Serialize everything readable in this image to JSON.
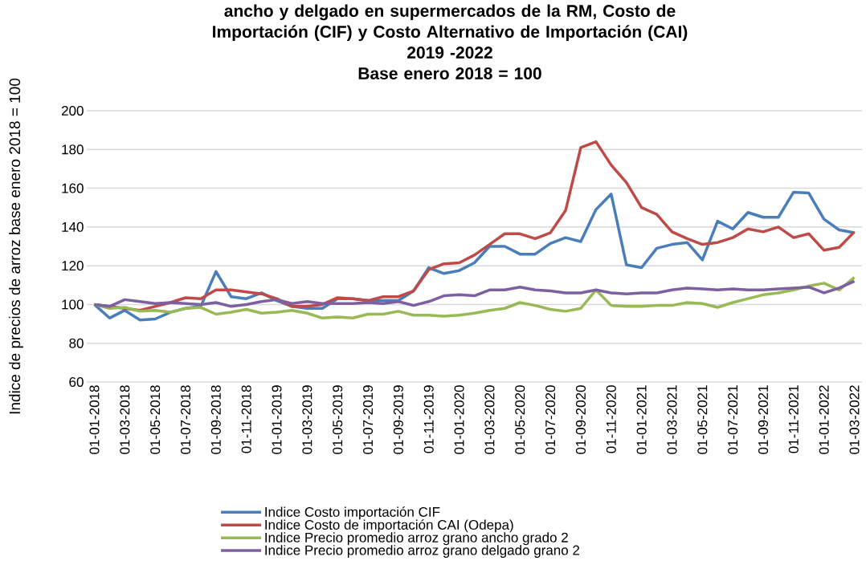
{
  "chart_data": {
    "type": "line",
    "title": "ancho y delgado en supermercados de la RM, Costo de Importación (CIF) y Costo Alternativo de Importación (CAI)",
    "subtitle": "2019 -2022",
    "annotations": [
      "Base enero 2018 = 100"
    ],
    "ylabel": "Indice de precios de arroz base enero 2018 = 100",
    "categories": [
      "01-01-2018",
      null,
      "01-03-2018",
      null,
      "01-05-2018",
      null,
      "01-07-2018",
      null,
      "01-09-2018",
      null,
      "01-11-2018",
      null,
      "01-01-2019",
      null,
      "01-03-2019",
      null,
      "01-05-2019",
      null,
      "01-07-2019",
      null,
      "01-09-2019",
      null,
      "01-11-2019",
      null,
      "01-01-2020",
      null,
      "01-03-2020",
      null,
      "01-05-2020",
      null,
      "01-07-2020",
      null,
      "01-09-2020",
      null,
      "01-11-2020",
      null,
      "01-01-2021",
      null,
      "01-03-2021",
      null,
      "01-05-2021",
      null,
      "01-07-2021",
      null,
      "01-09-2021",
      null,
      "01-11-2021",
      null,
      "01-01-2022",
      null,
      "01-03-2022"
    ],
    "ylim": [
      60,
      200
    ],
    "yticks": [
      60,
      80,
      100,
      120,
      140,
      160,
      180,
      200
    ],
    "grid": "y",
    "legend": "bottom",
    "marker": "none",
    "line_style": "solid",
    "series": [
      {
        "name": "Indice  Costo importación CIF",
        "color": "#4a7ebb",
        "values": [
          100,
          93,
          97,
          92,
          92.5,
          96,
          98,
          99,
          117,
          104,
          103,
          106,
          102,
          99,
          98,
          98,
          103,
          103,
          102,
          102,
          102,
          107,
          119,
          116,
          117.5,
          121.5,
          130,
          130,
          126,
          126,
          131.5,
          134.5,
          132.5,
          149,
          157,
          120.5,
          119,
          129,
          131,
          132,
          123,
          143,
          139,
          147.5,
          145,
          145,
          158,
          157.5,
          144,
          138.5,
          137
        ]
      },
      {
        "name": "Indice Costo de importación CAI (Odepa)",
        "color": "#be4b48",
        "values": [
          100,
          99,
          98,
          97,
          99,
          101,
          103.5,
          103,
          107.5,
          107.5,
          106.5,
          105.5,
          103,
          99,
          99,
          100,
          103.5,
          103,
          102,
          104,
          104,
          107,
          118,
          121,
          121.5,
          125.5,
          131,
          136.5,
          136.5,
          134,
          137,
          148.5,
          181,
          184,
          172,
          163,
          150,
          146.5,
          137.5,
          134,
          131,
          132,
          134.5,
          139,
          137.5,
          140,
          134.5,
          136.5,
          128,
          129.5,
          137.5
        ]
      },
      {
        "name": "Indice Precio promedio arroz grano ancho grado 2",
        "color": "#98b954",
        "values": [
          100,
          98,
          98.5,
          96.5,
          97,
          96,
          98,
          98.5,
          95,
          96,
          97.5,
          95.5,
          96,
          97,
          95.5,
          93,
          93.5,
          93,
          95,
          95,
          96.5,
          94.5,
          94.5,
          94,
          94.5,
          95.5,
          97,
          98,
          101,
          99.5,
          97.5,
          96.5,
          98,
          107.5,
          99.5,
          99,
          99,
          99.5,
          99.5,
          101,
          100.5,
          98.5,
          101,
          103,
          105,
          106,
          107.5,
          109.5,
          111,
          107.5,
          114
        ]
      },
      {
        "name": "Indice Precio promedio arroz grano delgado grano 2",
        "color": "#7d60a0",
        "values": [
          100,
          99,
          102.5,
          101.5,
          100.5,
          101,
          100.5,
          100,
          101,
          99,
          100,
          101.5,
          102.5,
          100.5,
          101.5,
          100.5,
          100.5,
          100.5,
          101,
          100.5,
          101.5,
          99.5,
          101.5,
          104.5,
          105,
          104.5,
          107.5,
          107.5,
          109,
          107.5,
          107,
          106,
          106,
          107.5,
          106,
          105.5,
          106,
          106,
          107.5,
          108.5,
          108,
          107.5,
          108,
          107.5,
          107.5,
          108,
          108.5,
          109,
          106,
          108.5,
          112
        ]
      }
    ]
  }
}
